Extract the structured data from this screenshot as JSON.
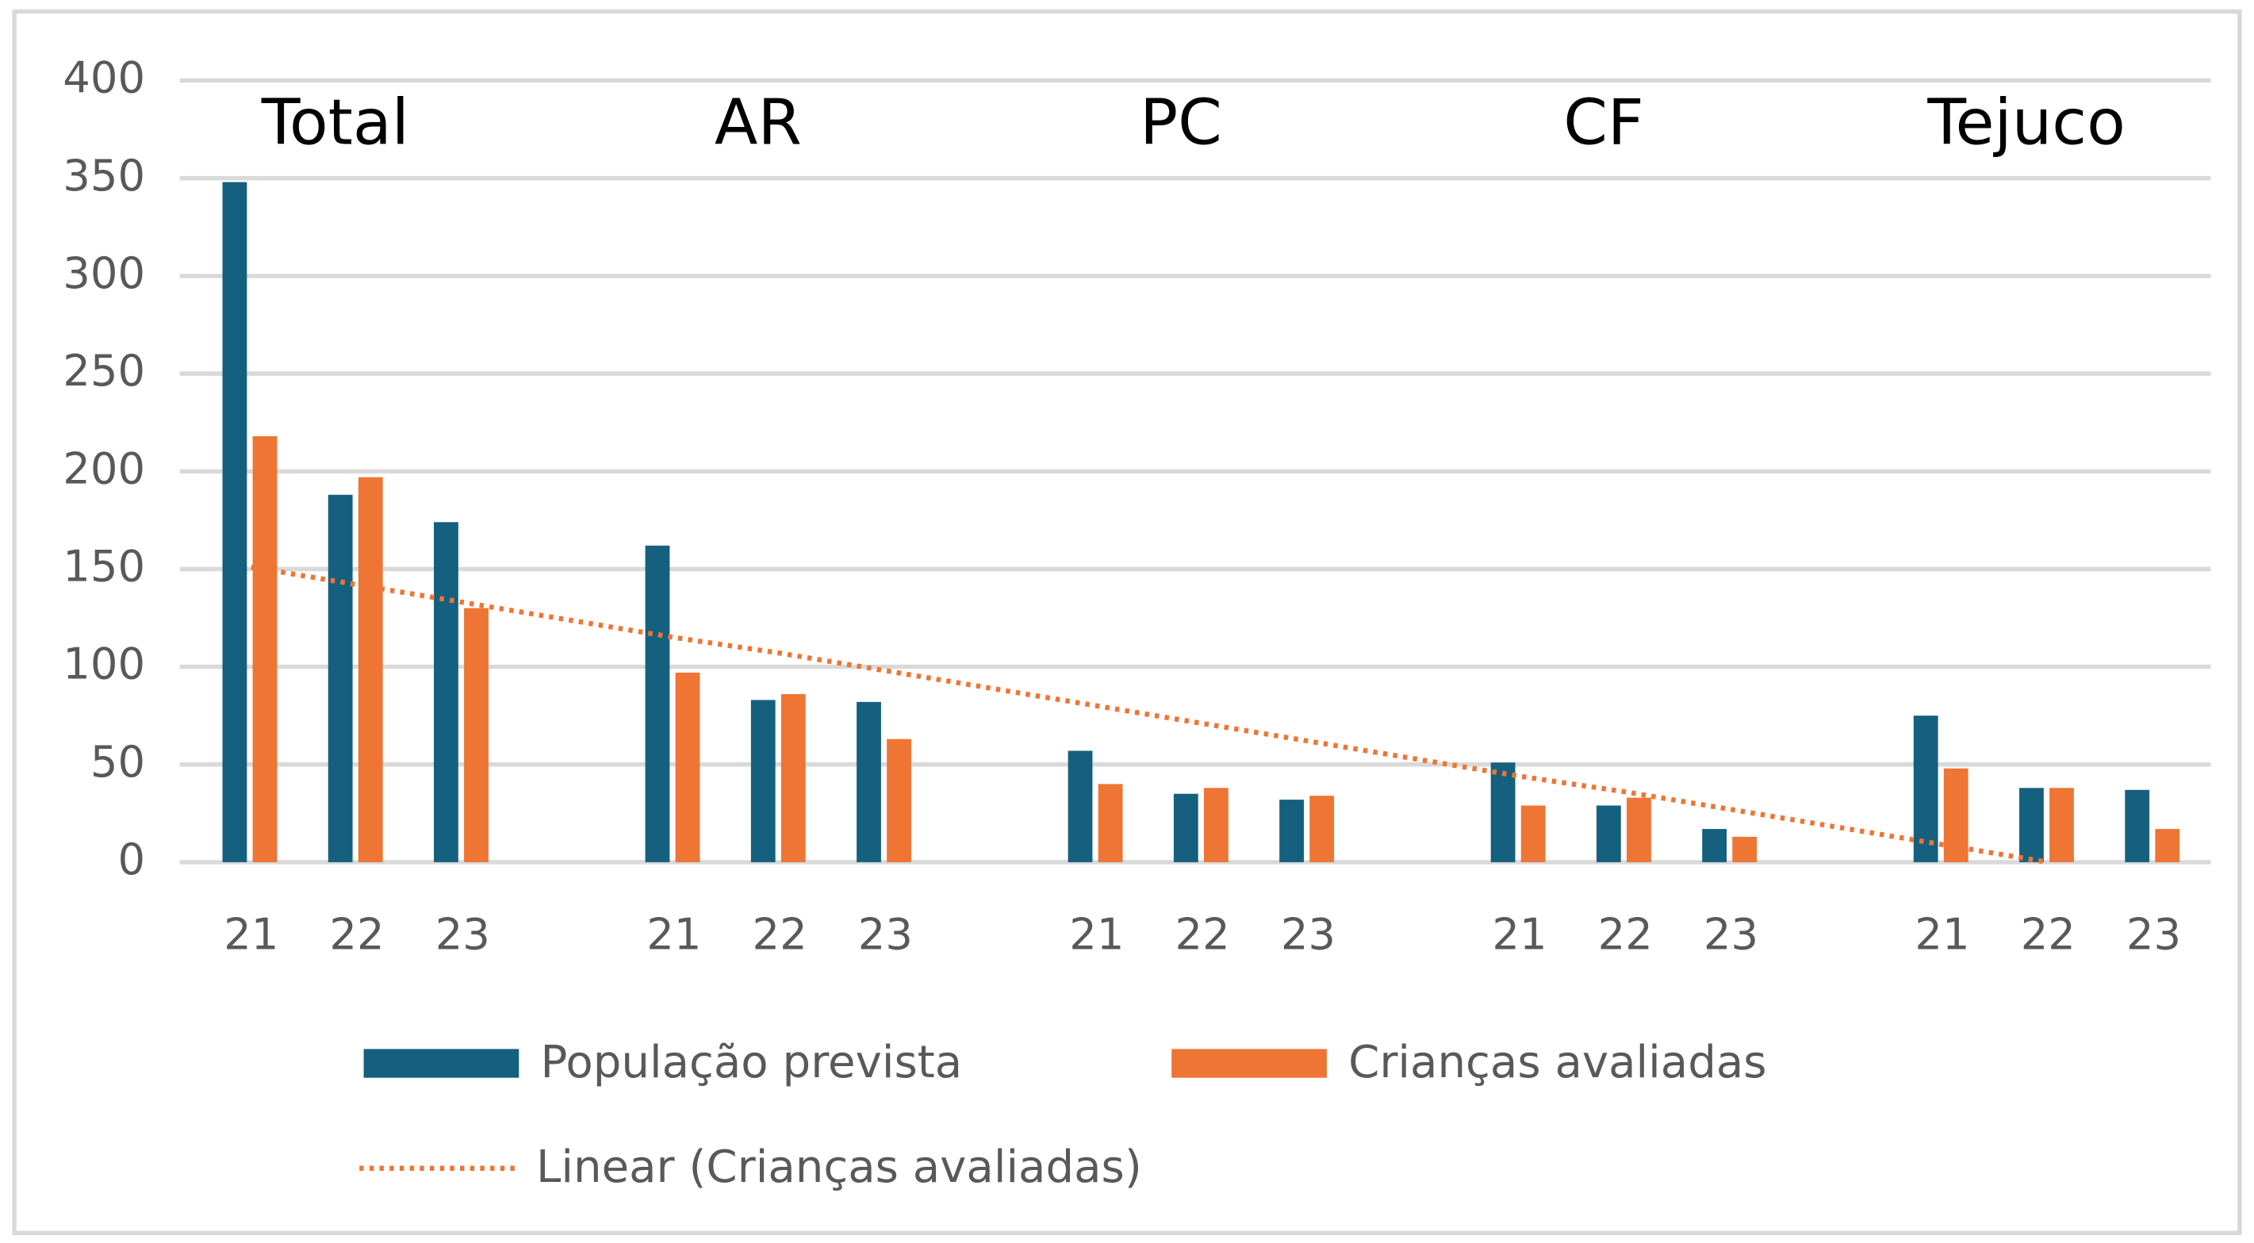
{
  "chart_data": {
    "type": "bar",
    "categories": [
      "21",
      "22",
      "23",
      null,
      "21",
      "22",
      "23",
      null,
      "21",
      "22",
      "23",
      null,
      "21",
      "22",
      "23",
      null,
      "21",
      "22",
      "23"
    ],
    "groups": [
      "Total",
      "AR",
      "PC",
      "CF",
      "Tejuco"
    ],
    "series": [
      {
        "name": "População prevista",
        "color": "#16607f",
        "values": [
          348,
          188,
          174,
          null,
          162,
          83,
          82,
          null,
          57,
          35,
          32,
          null,
          51,
          29,
          17,
          null,
          75,
          38,
          37
        ]
      },
      {
        "name": "Crianças avaliadas",
        "color": "#ee7534",
        "values": [
          218,
          197,
          130,
          null,
          97,
          86,
          63,
          null,
          40,
          38,
          34,
          null,
          29,
          33,
          13,
          null,
          48,
          38,
          17
        ]
      }
    ],
    "trendline": {
      "name": "Linear (Crianças avaliadas)",
      "color": "#ee7534",
      "values": [
        151,
        142,
        133,
        124,
        115,
        107,
        98,
        89,
        80,
        71,
        62,
        53,
        44,
        36,
        27,
        18,
        9,
        0,
        null
      ]
    },
    "ylim": [
      0,
      400
    ],
    "yticks": [
      0,
      50,
      100,
      150,
      200,
      250,
      300,
      350,
      400
    ],
    "grid": true,
    "legend": "bottom"
  }
}
